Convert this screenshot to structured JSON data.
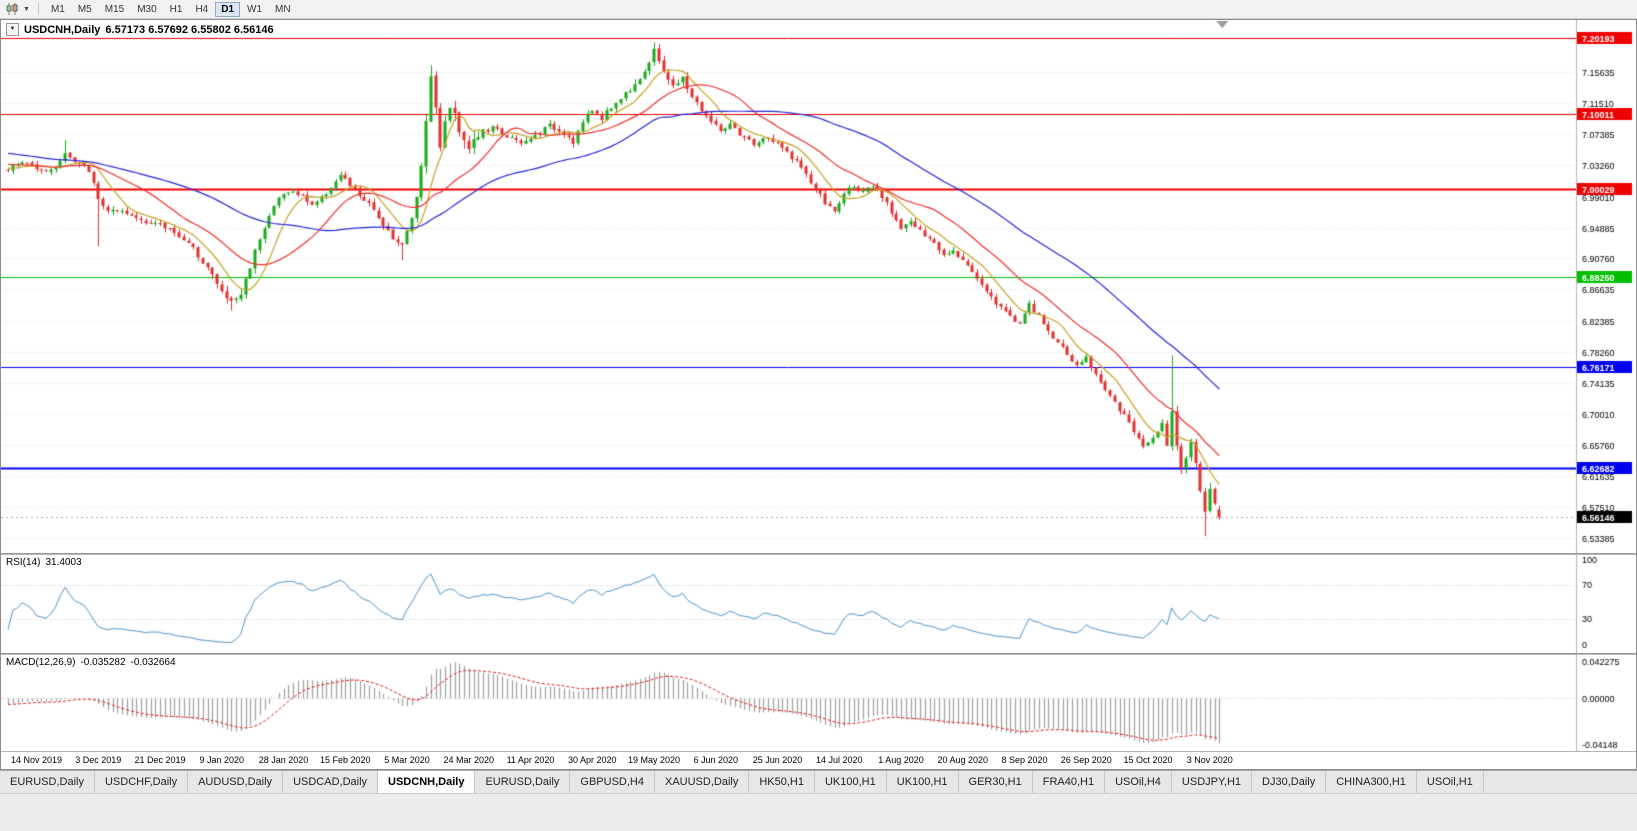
{
  "toolbar": {
    "timeframes": [
      "M1",
      "M5",
      "M15",
      "M30",
      "H1",
      "H4",
      "D1",
      "W1",
      "MN"
    ],
    "active_timeframe": "D1"
  },
  "chart_header": {
    "symbol": "USDCNH,Daily",
    "ohlc": "6.57173 6.57692 6.55802 6.56146"
  },
  "indicators": {
    "rsi": {
      "label": "RSI(14)",
      "value": "31.4003",
      "color": "#4f94cd",
      "levels": [
        70,
        30
      ],
      "axis_labels": [
        "100",
        "70",
        "30",
        "0"
      ]
    },
    "macd": {
      "label": "MACD(12,26,9)",
      "value_main": "-0.035282",
      "value_signal": "-0.032664",
      "axis_labels": [
        "0.042275",
        "0.00000",
        "-0.04148"
      ]
    }
  },
  "chart_data": {
    "type": "candlestick",
    "symbol": "USDCNH",
    "timeframe": "Daily",
    "bars_visible": 256,
    "last_candle": {
      "open": 6.57173,
      "high": 6.57692,
      "low": 6.55802,
      "close": 6.56146
    },
    "current_price": 6.56146,
    "current_price_label": "6.56146",
    "price_axis": {
      "top": 7.2265,
      "bottom": 6.5135,
      "labels": [
        "7.15635",
        "7.11510",
        "7.07385",
        "7.03260",
        "6.99010",
        "6.94885",
        "6.90760",
        "6.86635",
        "6.82385",
        "6.78260",
        "6.74135",
        "6.70010",
        "6.65760",
        "6.61635",
        "6.57510",
        "6.53385"
      ]
    },
    "horizontal_levels": [
      {
        "price": 7.20193,
        "label": "7.20193",
        "color": "#f00000",
        "width": 1
      },
      {
        "price": 7.10011,
        "label": "7.10011",
        "color": "#f00000",
        "width": 1
      },
      {
        "price": 7.00029,
        "label": "7.00029",
        "color": "#f00000",
        "width": 2
      },
      {
        "price": 6.8825,
        "label": "6.88250",
        "color": "#00c000",
        "width": 1
      },
      {
        "price": 6.76171,
        "label": "6.76171",
        "color": "#0000f0",
        "width": 1
      },
      {
        "price": 6.62682,
        "label": "6.62682",
        "color": "#0000f0",
        "width": 2
      }
    ],
    "dates": [
      "14 Nov 2019",
      "3 Dec 2019",
      "21 Dec 2019",
      "9 Jan 2020",
      "28 Jan 2020",
      "15 Feb 2020",
      "5 Mar 2020",
      "24 Mar 2020",
      "11 Apr 2020",
      "30 Apr 2020",
      "19 May 2020",
      "6 Jun 2020",
      "25 Jun 2020",
      "14 Jul 2020",
      "1 Aug 2020",
      "20 Aug 2020",
      "8 Sep 2020",
      "26 Sep 2020",
      "15 Oct 2020",
      "3 Nov 2020"
    ],
    "candle_colors": {
      "up": "#1caa1c",
      "down": "#e03232"
    },
    "moving_averages": [
      {
        "period": 8,
        "color": "#c9a227"
      },
      {
        "period": 20,
        "color": "#f03030"
      },
      {
        "period": 50,
        "color": "#2828dc"
      }
    ],
    "rsi_period": 14,
    "macd": {
      "fast": 12,
      "slow": 26,
      "signal": 9
    },
    "close_keypoints": [
      [
        -60,
        7.095
      ],
      [
        -45,
        7.072
      ],
      [
        -30,
        7.052
      ],
      [
        -15,
        7.038
      ],
      [
        0,
        7.028
      ],
      [
        3,
        7.036
      ],
      [
        6,
        7.03
      ],
      [
        9,
        7.024
      ],
      [
        12,
        7.048
      ],
      [
        14,
        7.036
      ],
      [
        17,
        7.026
      ],
      [
        19,
        6.986
      ],
      [
        21,
        6.972
      ],
      [
        24,
        6.968
      ],
      [
        27,
        6.962
      ],
      [
        31,
        6.954
      ],
      [
        35,
        6.944
      ],
      [
        39,
        6.92
      ],
      [
        42,
        6.896
      ],
      [
        45,
        6.862
      ],
      [
        47,
        6.849
      ],
      [
        49,
        6.86
      ],
      [
        51,
        6.898
      ],
      [
        53,
        6.936
      ],
      [
        55,
        6.965
      ],
      [
        57,
        6.988
      ],
      [
        59,
        6.998
      ],
      [
        62,
        6.99
      ],
      [
        64,
        6.98
      ],
      [
        66,
        6.988
      ],
      [
        68,
        7.004
      ],
      [
        70,
        7.018
      ],
      [
        72,
        7.005
      ],
      [
        74,
        6.992
      ],
      [
        76,
        6.979
      ],
      [
        79,
        6.954
      ],
      [
        81,
        6.936
      ],
      [
        83,
        6.925
      ],
      [
        85,
        6.962
      ],
      [
        87,
        7.03
      ],
      [
        89,
        7.158
      ],
      [
        90,
        7.105
      ],
      [
        91,
        7.062
      ],
      [
        93,
        7.112
      ],
      [
        95,
        7.082
      ],
      [
        97,
        7.058
      ],
      [
        99,
        7.072
      ],
      [
        102,
        7.082
      ],
      [
        105,
        7.072
      ],
      [
        108,
        7.06
      ],
      [
        111,
        7.072
      ],
      [
        114,
        7.085
      ],
      [
        117,
        7.076
      ],
      [
        119,
        7.064
      ],
      [
        121,
        7.09
      ],
      [
        123,
        7.106
      ],
      [
        125,
        7.096
      ],
      [
        127,
        7.11
      ],
      [
        129,
        7.122
      ],
      [
        131,
        7.135
      ],
      [
        133,
        7.15
      ],
      [
        135,
        7.168
      ],
      [
        136,
        7.184
      ],
      [
        138,
        7.16
      ],
      [
        140,
        7.136
      ],
      [
        142,
        7.148
      ],
      [
        144,
        7.124
      ],
      [
        146,
        7.106
      ],
      [
        148,
        7.09
      ],
      [
        150,
        7.079
      ],
      [
        152,
        7.086
      ],
      [
        154,
        7.071
      ],
      [
        157,
        7.061
      ],
      [
        160,
        7.069
      ],
      [
        163,
        7.055
      ],
      [
        166,
        7.038
      ],
      [
        168,
        7.018
      ],
      [
        170,
        7.0
      ],
      [
        172,
        6.982
      ],
      [
        174,
        6.97
      ],
      [
        176,
        6.994
      ],
      [
        178,
        7.006
      ],
      [
        180,
        6.995
      ],
      [
        182,
        7.003
      ],
      [
        184,
        6.989
      ],
      [
        186,
        6.97
      ],
      [
        188,
        6.95
      ],
      [
        190,
        6.957
      ],
      [
        192,
        6.943
      ],
      [
        195,
        6.927
      ],
      [
        197,
        6.913
      ],
      [
        199,
        6.921
      ],
      [
        201,
        6.905
      ],
      [
        203,
        6.89
      ],
      [
        205,
        6.874
      ],
      [
        207,
        6.856
      ],
      [
        209,
        6.841
      ],
      [
        211,
        6.831
      ],
      [
        213,
        6.821
      ],
      [
        215,
        6.845
      ],
      [
        217,
        6.829
      ],
      [
        219,
        6.811
      ],
      [
        221,
        6.795
      ],
      [
        223,
        6.779
      ],
      [
        225,
        6.764
      ],
      [
        227,
        6.774
      ],
      [
        229,
        6.752
      ],
      [
        231,
        6.734
      ],
      [
        233,
        6.714
      ],
      [
        235,
        6.696
      ],
      [
        237,
        6.678
      ],
      [
        239,
        6.654
      ],
      [
        241,
        6.67
      ],
      [
        243,
        6.688
      ],
      [
        244,
        6.66
      ],
      [
        245,
        6.7
      ],
      [
        246,
        6.662
      ],
      [
        247,
        6.628
      ],
      [
        248,
        6.645
      ],
      [
        249,
        6.663
      ],
      [
        250,
        6.634
      ],
      [
        251,
        6.598
      ],
      [
        252,
        6.565
      ],
      [
        253,
        6.595
      ],
      [
        254,
        6.577
      ],
      [
        255,
        6.5615
      ]
    ],
    "wick_overrides": {
      "highs": [
        [
          12,
          7.066
        ],
        [
          89,
          7.166
        ],
        [
          136,
          7.1965
        ],
        [
          245,
          6.778
        ]
      ],
      "lows": [
        [
          19,
          6.924
        ],
        [
          47,
          6.838
        ],
        [
          83,
          6.905
        ],
        [
          252,
          6.5359
        ]
      ]
    }
  },
  "tabs": [
    {
      "label": "EURUSD,Daily",
      "active": false
    },
    {
      "label": "USDCHF,Daily",
      "active": false
    },
    {
      "label": "AUDUSD,Daily",
      "active": false
    },
    {
      "label": "USDCAD,Daily",
      "active": false
    },
    {
      "label": "USDCNH,Daily",
      "active": true
    },
    {
      "label": "EURUSD,Daily",
      "active": false
    },
    {
      "label": "GBPUSD,H4",
      "active": false
    },
    {
      "label": "XAUUSD,Daily",
      "active": false
    },
    {
      "label": "HK50,H1",
      "active": false
    },
    {
      "label": "UK100,H1",
      "active": false
    },
    {
      "label": "UK100,H1",
      "active": false
    },
    {
      "label": "GER30,H1",
      "active": false
    },
    {
      "label": "FRA40,H1",
      "active": false
    },
    {
      "label": "USOil,H4",
      "active": false
    },
    {
      "label": "USDJPY,H1",
      "active": false
    },
    {
      "label": "DJ30,Daily",
      "active": false
    },
    {
      "label": "CHINA300,H1",
      "active": false
    },
    {
      "label": "USOil,H1",
      "active": false
    }
  ]
}
